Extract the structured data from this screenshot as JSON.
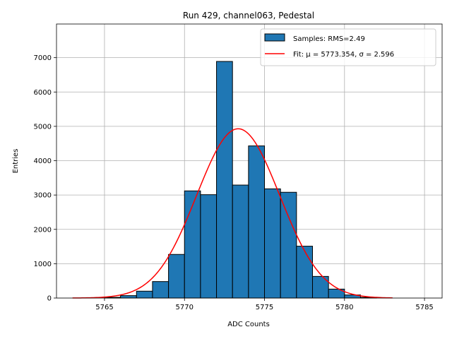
{
  "chart_data": {
    "type": "bar",
    "title": "Run 429, channel063, Pedestal",
    "xlabel": "ADC Counts",
    "ylabel": "Entries",
    "xlim": [
      5762,
      5786.1
    ],
    "ylim": [
      0,
      7980
    ],
    "x_ticks": [
      5765,
      5770,
      5775,
      5780,
      5785
    ],
    "y_ticks": [
      0,
      1000,
      2000,
      3000,
      4000,
      5000,
      6000,
      7000
    ],
    "grid": true,
    "legend_position": "top-right",
    "bar_color": "#1f77b4",
    "fit_color": "#ff0000",
    "bins": [
      {
        "x0": 5765,
        "x1": 5766,
        "value": 20
      },
      {
        "x0": 5766,
        "x1": 5767,
        "value": 70
      },
      {
        "x0": 5767,
        "x1": 5768,
        "value": 200
      },
      {
        "x0": 5768,
        "x1": 5769,
        "value": 480
      },
      {
        "x0": 5769,
        "x1": 5770,
        "value": 1270
      },
      {
        "x0": 5770,
        "x1": 5771,
        "value": 3120
      },
      {
        "x0": 5771,
        "x1": 5772,
        "value": 3010
      },
      {
        "x0": 5772,
        "x1": 5773,
        "value": 6890
      },
      {
        "x0": 5773,
        "x1": 5774,
        "value": 3290
      },
      {
        "x0": 5774,
        "x1": 5775,
        "value": 4430
      },
      {
        "x0": 5775,
        "x1": 5776,
        "value": 3180
      },
      {
        "x0": 5776,
        "x1": 5777,
        "value": 3080
      },
      {
        "x0": 5777,
        "x1": 5778,
        "value": 1510
      },
      {
        "x0": 5778,
        "x1": 5779,
        "value": 630
      },
      {
        "x0": 5779,
        "x1": 5780,
        "value": 260
      },
      {
        "x0": 5780,
        "x1": 5781,
        "value": 90
      },
      {
        "x0": 5781,
        "x1": 5782,
        "value": 20
      }
    ],
    "fit": {
      "mu": 5773.354,
      "sigma": 2.596,
      "amplitude": 4930,
      "x_range": [
        5763,
        5783
      ]
    },
    "legend": [
      {
        "label": "Samples: RMS=2.49",
        "kind": "patch"
      },
      {
        "label": "Fit: μ = 5773.354, σ = 2.596",
        "kind": "line"
      }
    ]
  }
}
